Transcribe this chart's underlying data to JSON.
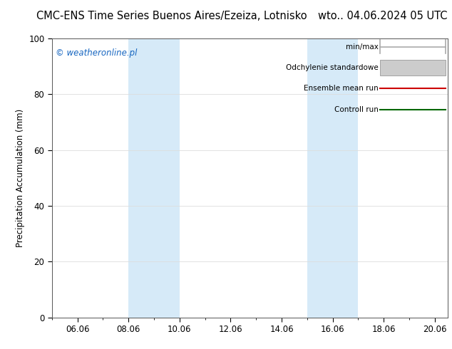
{
  "title_left": "CMC-ENS Time Series Buenos Aires/Ezeiza, Lotnisko",
  "title_right": "wto.. 04.06.2024 05 UTC",
  "ylabel": "Precipitation Accumulation (mm)",
  "watermark": "© weatheronline.pl",
  "ylim": [
    0,
    100
  ],
  "yticks": [
    0,
    20,
    40,
    60,
    80,
    100
  ],
  "xlim": [
    5.0,
    20.5
  ],
  "xtick_labels": [
    "06.06",
    "08.06",
    "10.06",
    "12.06",
    "14.06",
    "16.06",
    "18.06",
    "20.06"
  ],
  "xtick_positions": [
    6.0,
    8.0,
    10.0,
    12.0,
    14.0,
    16.0,
    18.0,
    20.0
  ],
  "shaded_bands": [
    {
      "x_start": 8.0,
      "x_end": 10.0
    },
    {
      "x_start": 15.0,
      "x_end": 17.0
    }
  ],
  "shaded_color": "#d6eaf8",
  "legend_entries": [
    {
      "label": "min/max",
      "color": "#aaaaaa",
      "style": "minmax"
    },
    {
      "label": "Odchylenie standardowe",
      "color": "#cccccc",
      "style": "std"
    },
    {
      "label": "Ensemble mean run",
      "color": "#cc0000",
      "style": "line"
    },
    {
      "label": "Controll run",
      "color": "#006600",
      "style": "line"
    }
  ],
  "background_color": "#ffffff",
  "plot_bg_color": "#ffffff",
  "grid_color": "#dddddd",
  "title_fontsize": 10.5,
  "tick_fontsize": 8.5,
  "ylabel_fontsize": 8.5,
  "legend_fontsize": 7.5,
  "watermark_color": "#1565c0",
  "watermark_fontsize": 8.5
}
